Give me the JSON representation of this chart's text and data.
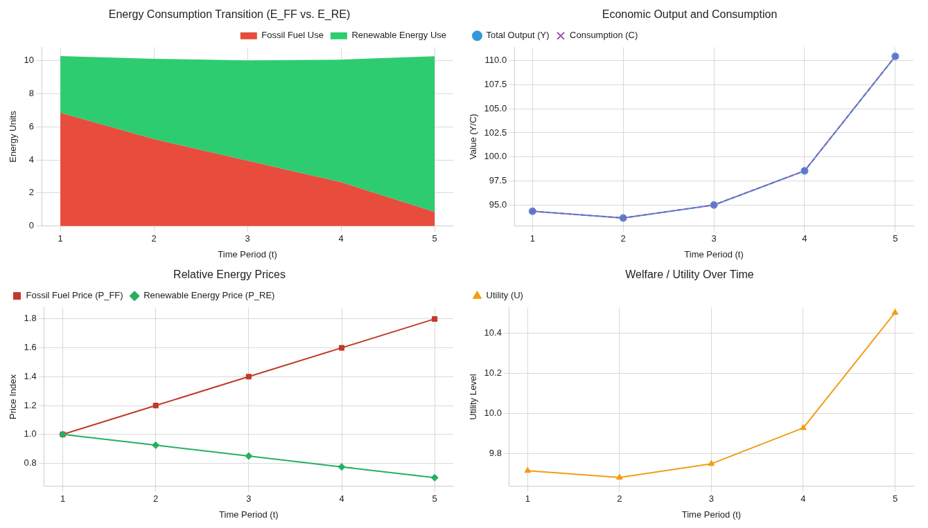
{
  "chart_data": [
    {
      "type": "area",
      "title": "Energy Consumption Transition (E_FF vs. E_RE)",
      "xlabel": "Time Period (t)",
      "ylabel": "Energy Units",
      "x": [
        1,
        2,
        3,
        4,
        5
      ],
      "xlim": [
        0.8,
        5.2
      ],
      "xticks": [
        1,
        2,
        3,
        4,
        5
      ],
      "ylim": [
        0,
        10.8
      ],
      "yticks": [
        0,
        2,
        4,
        6,
        8,
        10
      ],
      "stacked": true,
      "grid": true,
      "legend": "top right",
      "series": [
        {
          "name": "Fossil Fuel Use",
          "color": "#e74c3c",
          "values": [
            6.84,
            5.25,
            3.95,
            2.65,
            0.86
          ]
        },
        {
          "name": "Renewable Energy Use",
          "color": "#2ecc71",
          "values": [
            3.43,
            4.85,
            6.05,
            7.4,
            9.4
          ]
        }
      ]
    },
    {
      "type": "line",
      "title": "Economic Output and Consumption",
      "xlabel": "Time Period (t)",
      "ylabel": "Value (Y/C)",
      "x": [
        1,
        2,
        3,
        4,
        5
      ],
      "xlim": [
        0.8,
        5.2
      ],
      "xticks": [
        1,
        2,
        3,
        4,
        5
      ],
      "ylim": [
        92.8,
        111.4
      ],
      "yticks": [
        {
          "value": 95,
          "label": "95.0"
        },
        97.5,
        {
          "value": 100,
          "label": "100.0"
        },
        102.5,
        {
          "value": 105,
          "label": "105.0"
        },
        107.5,
        {
          "value": 110,
          "label": "110.0"
        }
      ],
      "grid": true,
      "legend": "top left",
      "series": [
        {
          "name": "Total Output (Y)",
          "color": "#3498db",
          "marker": "circle",
          "line_style": "solid",
          "values": [
            94.35,
            93.65,
            95.0,
            98.55,
            110.45
          ]
        },
        {
          "name": "Consumption (C)",
          "color": "#9b59b6",
          "marker": "cross",
          "line_style": "dashed",
          "values": [
            94.35,
            93.65,
            95.0,
            98.55,
            110.45
          ]
        }
      ]
    },
    {
      "type": "line",
      "title": "Relative Energy Prices",
      "xlabel": "Time Period (t)",
      "ylabel": "Price Index",
      "x": [
        1,
        2,
        3,
        4,
        5
      ],
      "xlim": [
        0.8,
        5.2
      ],
      "xticks": [
        1,
        2,
        3,
        4,
        5
      ],
      "ylim": [
        0.64,
        1.88
      ],
      "yticks": [
        0.8,
        {
          "value": 1,
          "label": "1.0"
        },
        1.2,
        1.4,
        1.6,
        1.8
      ],
      "grid": true,
      "legend": "top left",
      "series": [
        {
          "name": "Fossil Fuel Price (P_FF)",
          "color": "#c0392b",
          "marker": "square",
          "line_style": "solid",
          "values": [
            1.0,
            1.2,
            1.4,
            1.6,
            1.8
          ]
        },
        {
          "name": "Renewable Energy Price (P_RE)",
          "color": "#27ae60",
          "marker": "diamond",
          "line_style": "solid",
          "values": [
            1.0,
            0.925,
            0.85,
            0.775,
            0.7
          ]
        }
      ]
    },
    {
      "type": "line",
      "title": "Welfare / Utility Over Time",
      "xlabel": "Time Period (t)",
      "ylabel": "Utility Level",
      "x": [
        1,
        2,
        3,
        4,
        5
      ],
      "xlim": [
        0.8,
        5.2
      ],
      "xticks": [
        1,
        2,
        3,
        4,
        5
      ],
      "ylim": [
        9.635,
        10.53
      ],
      "yticks": [
        9.8,
        {
          "value": 10,
          "label": "10.0"
        },
        10.2,
        10.4
      ],
      "grid": true,
      "legend": "top left",
      "series": [
        {
          "name": "Utility (U)",
          "color": "#f39c12",
          "marker": "triangle",
          "line_style": "solid",
          "values": [
            9.713,
            9.679,
            9.748,
            9.927,
            10.504
          ]
        }
      ]
    }
  ]
}
